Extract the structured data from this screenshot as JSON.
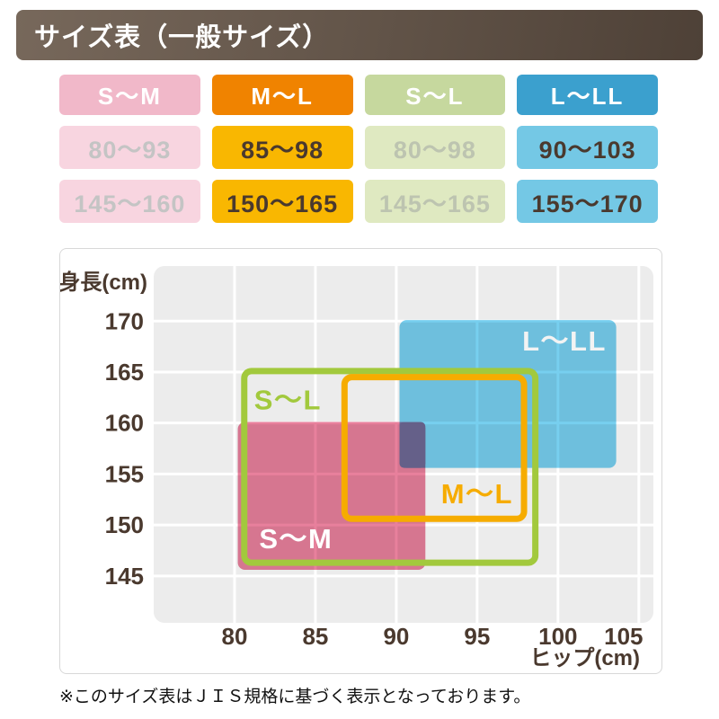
{
  "header": {
    "title": "サイズ表（一般サイズ）",
    "bg_top": "#77685B",
    "bg_bottom": "#4E4137",
    "text_color": "#FFFFFF"
  },
  "size_table": {
    "columns": [
      {
        "size_label": "S〜M",
        "hip_range": "80〜93",
        "height_range": "145〜160",
        "header_bg": "#F1B8C9",
        "header_text": "#FFFFFF",
        "cell_bg": "#F8D5E0",
        "cell_text": "#C4C4C4"
      },
      {
        "size_label": "M〜L",
        "hip_range": "85〜98",
        "height_range": "150〜165",
        "header_bg": "#F08300",
        "header_text": "#FFFFFF",
        "cell_bg": "#F9B701",
        "cell_text": "#4A392E"
      },
      {
        "size_label": "S〜L",
        "hip_range": "80〜98",
        "height_range": "145〜165",
        "header_bg": "#C6D89E",
        "header_text": "#FFFFFF",
        "cell_bg": "#DFE9C1",
        "cell_text": "#BDC4B0"
      },
      {
        "size_label": "L〜LL",
        "hip_range": "90〜103",
        "height_range": "155〜170",
        "header_bg": "#3BA0CE",
        "header_text": "#FFFFFF",
        "cell_bg": "#74C8E5",
        "cell_text": "#4A392E"
      }
    ]
  },
  "chart_data": {
    "type": "area",
    "title": "",
    "xlabel": "ヒップ(cm)",
    "ylabel": "身長(cm)",
    "x_ticks": [
      80,
      85,
      90,
      95,
      100,
      105
    ],
    "y_ticks": [
      170,
      165,
      160,
      155,
      150,
      145
    ],
    "xlim": [
      75,
      105.9
    ],
    "ylim": [
      140.4,
      175.4
    ],
    "grid": true,
    "legend": "inline-labels",
    "plot_bg": "#ECECEC",
    "grid_color": "#FFFFFF",
    "axis_text_color": "#4A392E",
    "regions": [
      {
        "label": "S〜M",
        "hip": [
          80,
          93
        ],
        "height": [
          145,
          160
        ],
        "style": "fill",
        "color": "#E8809C",
        "label_color": "#FFFFFF",
        "draw_hip": [
          80.2,
          91.8
        ],
        "draw_height": [
          145.6,
          160.1
        ],
        "label_pos": [
          83.8,
          148.7
        ]
      },
      {
        "label": "L〜LL",
        "hip": [
          90,
          103
        ],
        "height": [
          155,
          170
        ],
        "style": "fill",
        "color": "#77CFEF",
        "label_color": "#F3F3F3",
        "draw_hip": [
          90.2,
          103.6
        ],
        "draw_height": [
          155.6,
          170.1
        ],
        "label_pos": [
          100.4,
          168.1
        ]
      },
      {
        "label": "S〜L",
        "hip": [
          80,
          98
        ],
        "height": [
          145,
          165
        ],
        "style": "outline",
        "color": "#A2C93D",
        "label_color": "#A2C93D",
        "draw_hip": [
          80.6,
          98.6
        ],
        "draw_height": [
          146.3,
          165.1
        ],
        "label_pos": [
          83.3,
          162.3
        ]
      },
      {
        "label": "M〜L",
        "hip": [
          85,
          98
        ],
        "height": [
          150,
          165
        ],
        "style": "outline",
        "color": "#F6AC00",
        "label_color": "#F6AC00",
        "draw_hip": [
          86.8,
          97.9
        ],
        "draw_height": [
          150.6,
          164.5
        ],
        "label_pos": [
          95.0,
          153.1
        ]
      }
    ],
    "overlap": {
      "between": [
        "S〜M",
        "L〜LL"
      ],
      "hip": [
        90.2,
        91.8
      ],
      "height": [
        155.6,
        160.1
      ],
      "color": "#656089"
    }
  },
  "footnote": "※このサイズ表はＪＩＳ規格に基づく表示となっております。"
}
